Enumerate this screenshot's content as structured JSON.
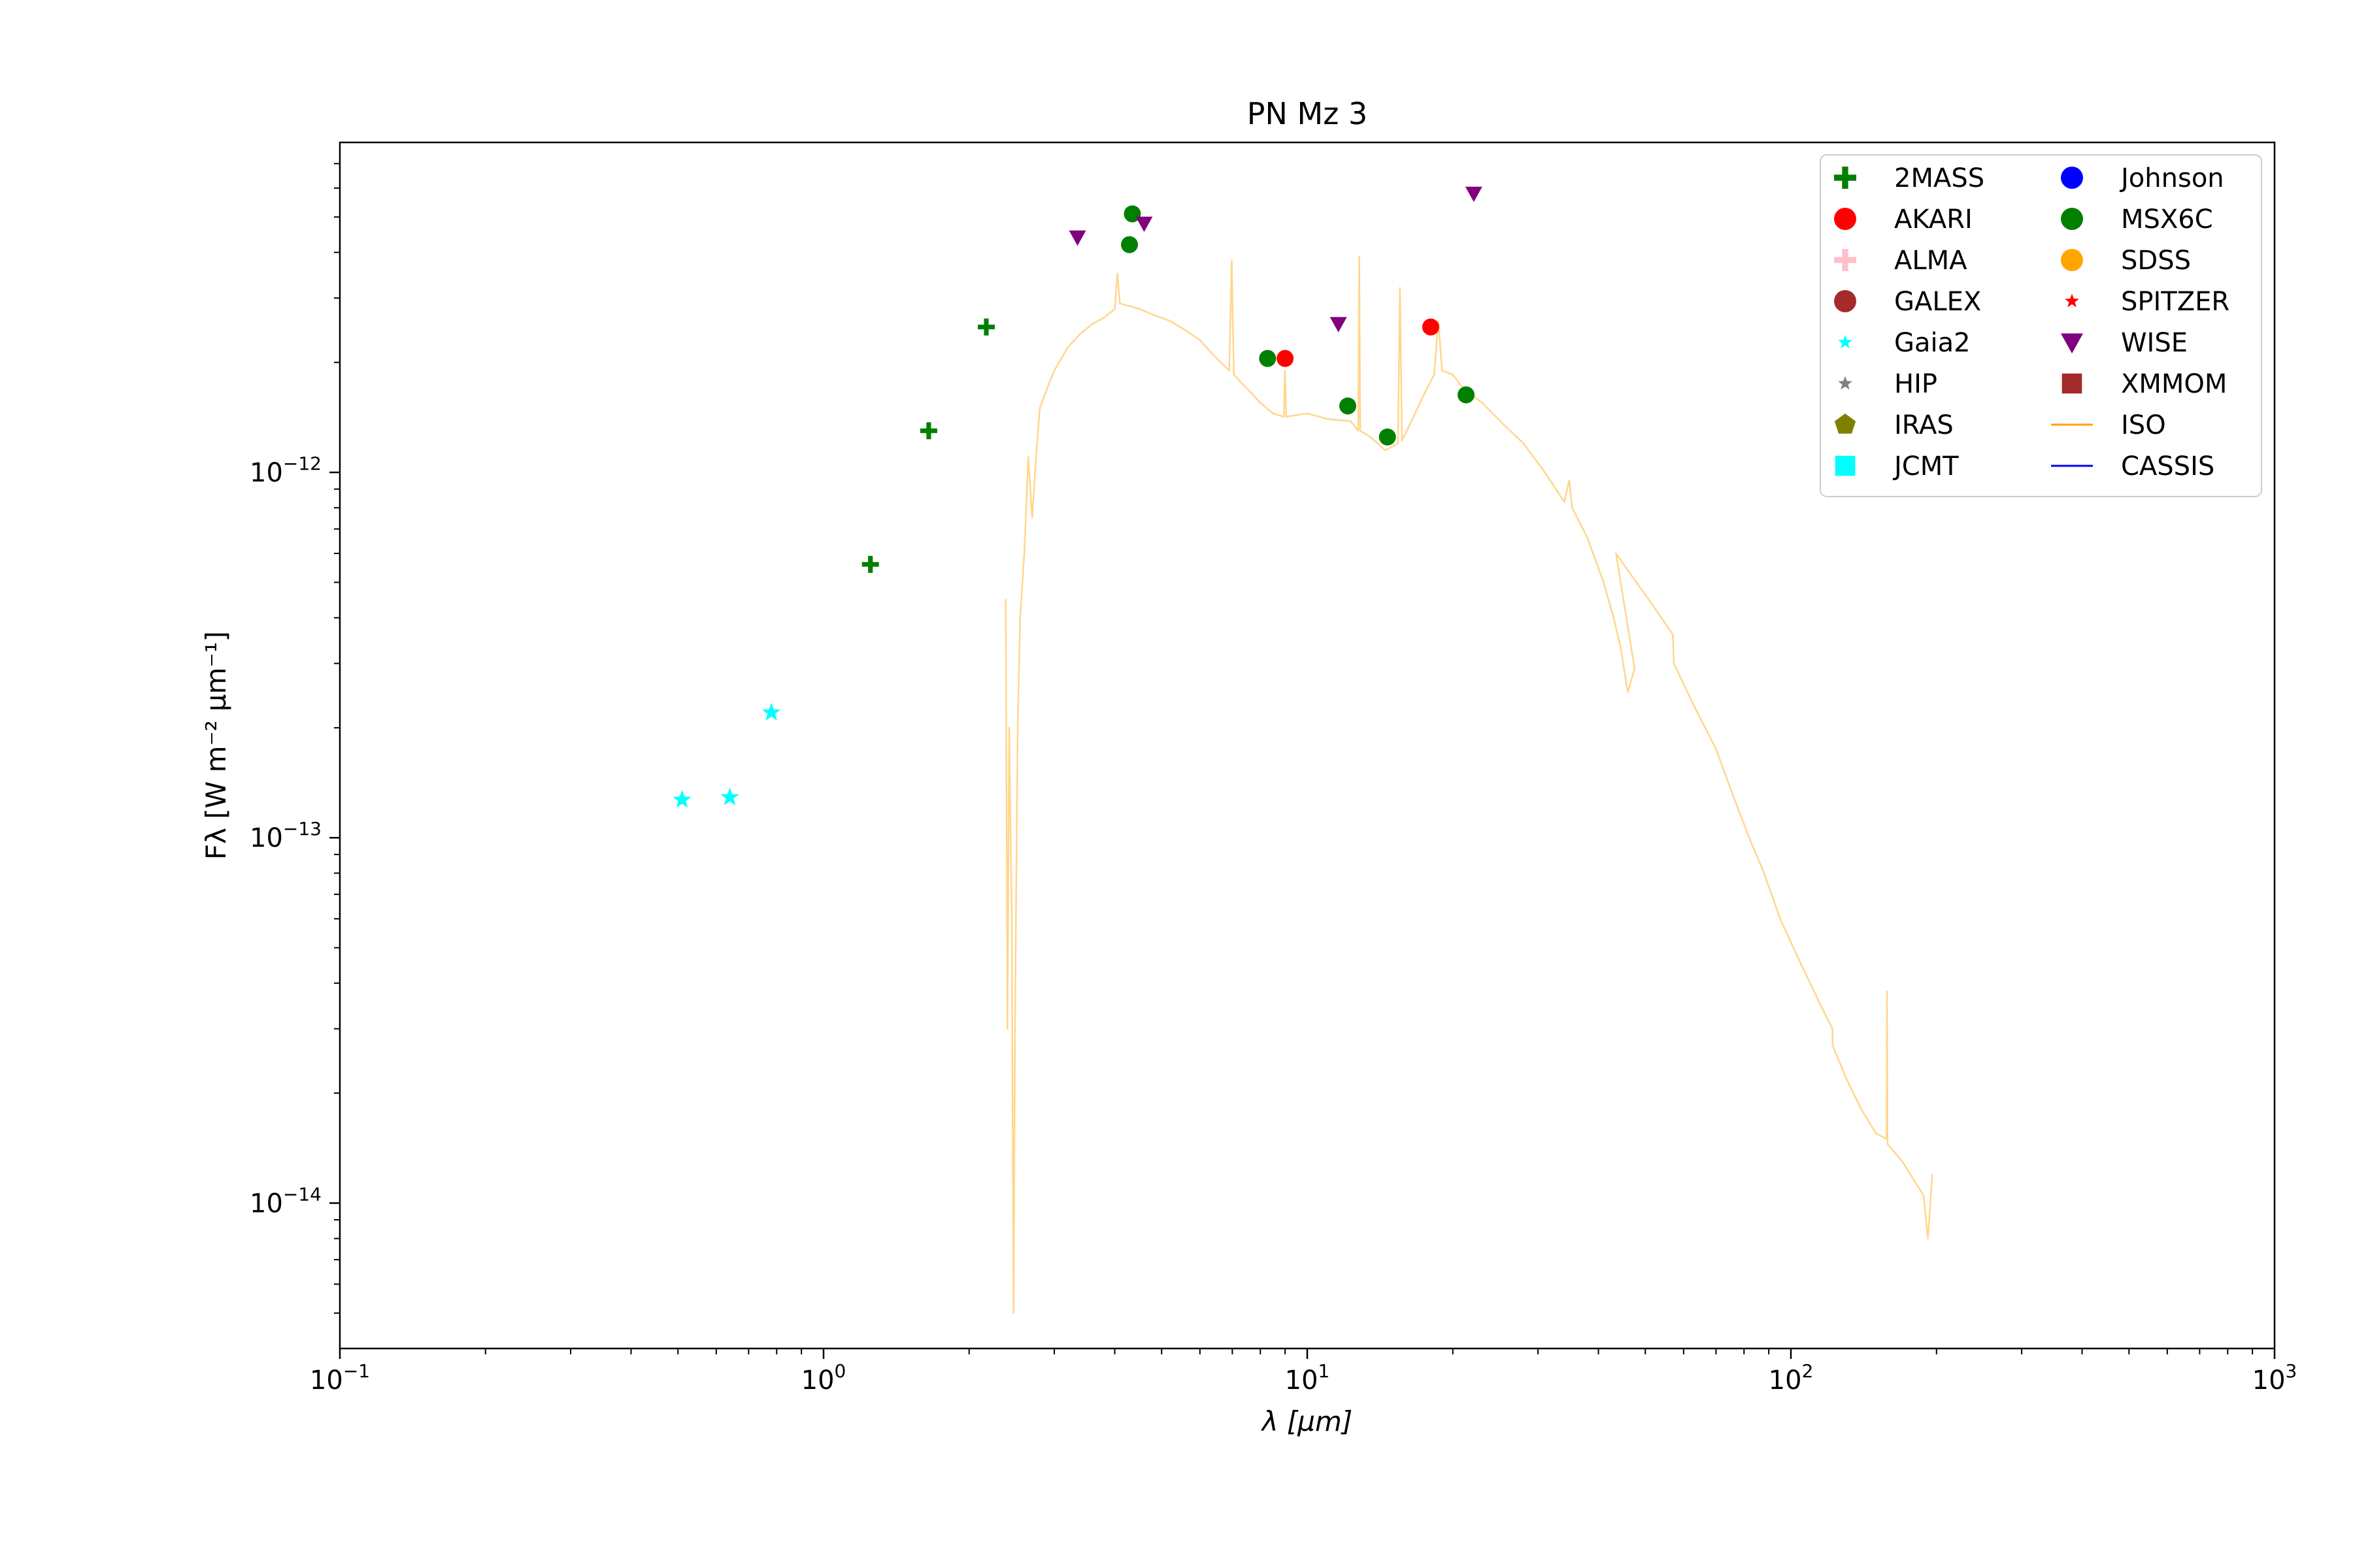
{
  "chart_data": {
    "type": "scatter",
    "title": "PN Mz 3",
    "xlabel": "λ [μm]",
    "ylabel": "Fλ [W m⁻² μm⁻¹]",
    "xscale": "log",
    "yscale": "log",
    "xlim": [
      0.1,
      1000
    ],
    "ylim": [
      4e-15,
      8e-12
    ],
    "grid": false,
    "legend_position": "top-right",
    "x_ticks": [
      {
        "value": 0.1,
        "base": "10",
        "exp": "−1"
      },
      {
        "value": 1,
        "base": "10",
        "exp": "0"
      },
      {
        "value": 10,
        "base": "10",
        "exp": "1"
      },
      {
        "value": 100,
        "base": "10",
        "exp": "2"
      },
      {
        "value": 1000,
        "base": "10",
        "exp": "3"
      }
    ],
    "y_ticks": [
      {
        "value": 1e-14,
        "base": "10",
        "exp": "−14"
      },
      {
        "value": 1e-13,
        "base": "10",
        "exp": "−13"
      },
      {
        "value": 1e-12,
        "base": "10",
        "exp": "−12"
      }
    ],
    "series": [
      {
        "name": "2MASS",
        "marker": "plus",
        "color": "#008000",
        "points": [
          [
            1.25,
            5.6e-13
          ],
          [
            1.65,
            1.3e-12
          ],
          [
            2.17,
            2.5e-12
          ]
        ]
      },
      {
        "name": "AKARI",
        "marker": "circle",
        "color": "#ff0000",
        "points": [
          [
            9.0,
            2.05e-12
          ],
          [
            18.0,
            2.5e-12
          ]
        ]
      },
      {
        "name": "ALMA",
        "marker": "plus",
        "color": "#ffc0cb",
        "points": []
      },
      {
        "name": "GALEX",
        "marker": "circle",
        "color": "#a52a2a",
        "points": []
      },
      {
        "name": "Gaia2",
        "marker": "star",
        "color": "#00ffff",
        "points": [
          [
            0.51,
            1.27e-13
          ],
          [
            0.64,
            1.29e-13
          ],
          [
            0.78,
            2.2e-13
          ]
        ]
      },
      {
        "name": "HIP",
        "marker": "star",
        "color": "#808080",
        "points": []
      },
      {
        "name": "IRAS",
        "marker": "pentagon",
        "color": "#808000",
        "points": []
      },
      {
        "name": "JCMT",
        "marker": "square",
        "color": "#00ffff",
        "points": []
      },
      {
        "name": "Johnson",
        "marker": "circle",
        "color": "#0000ff",
        "points": []
      },
      {
        "name": "MSX6C",
        "marker": "circle",
        "color": "#008000",
        "points": [
          [
            4.29,
            4.2e-12
          ],
          [
            4.35,
            5.1e-12
          ],
          [
            8.28,
            2.05e-12
          ],
          [
            12.13,
            1.52e-12
          ],
          [
            14.65,
            1.25e-12
          ],
          [
            21.3,
            1.63e-12
          ]
        ]
      },
      {
        "name": "SDSS",
        "marker": "circle",
        "color": "#ffa500",
        "points": []
      },
      {
        "name": "SPITZER",
        "marker": "star",
        "color": "#ff0000",
        "points": []
      },
      {
        "name": "WISE",
        "marker": "triangle-down",
        "color": "#800080",
        "points": [
          [
            3.35,
            4.4e-12
          ],
          [
            4.6,
            4.8e-12
          ],
          [
            11.6,
            2.55e-12
          ],
          [
            22.1,
            5.8e-12
          ]
        ]
      },
      {
        "name": "XMMOM",
        "marker": "square",
        "color": "#a52a2a",
        "points": []
      },
      {
        "name": "ISO",
        "marker": "line",
        "color": "#ffa500",
        "opacity": 0.45,
        "points": [
          [
            2.38,
            4.5e-13
          ],
          [
            2.4,
            3e-14
          ],
          [
            2.42,
            2e-13
          ],
          [
            2.45,
            6e-14
          ],
          [
            2.47,
            5e-15
          ],
          [
            2.49,
            3.5e-14
          ],
          [
            2.52,
            2e-13
          ],
          [
            2.55,
            4e-13
          ],
          [
            2.6,
            6e-13
          ],
          [
            2.65,
            1.1e-12
          ],
          [
            2.7,
            7.5e-13
          ],
          [
            2.75,
            1.1e-12
          ],
          [
            2.8,
            1.5e-12
          ],
          [
            2.9,
            1.7e-12
          ],
          [
            3.0,
            1.9e-12
          ],
          [
            3.2,
            2.2e-12
          ],
          [
            3.4,
            2.4e-12
          ],
          [
            3.6,
            2.55e-12
          ],
          [
            3.8,
            2.65e-12
          ],
          [
            4.0,
            2.8e-12
          ],
          [
            4.05,
            3.5e-12
          ],
          [
            4.1,
            2.9e-12
          ],
          [
            4.3,
            2.85e-12
          ],
          [
            4.5,
            2.8e-12
          ],
          [
            4.8,
            2.7e-12
          ],
          [
            5.2,
            2.6e-12
          ],
          [
            5.6,
            2.45e-12
          ],
          [
            6.0,
            2.3e-12
          ],
          [
            6.5,
            2.05e-12
          ],
          [
            6.9,
            1.9e-12
          ],
          [
            6.98,
            3.8e-12
          ],
          [
            7.05,
            1.85e-12
          ],
          [
            7.5,
            1.7e-12
          ],
          [
            8.0,
            1.55e-12
          ],
          [
            8.5,
            1.45e-12
          ],
          [
            8.95,
            1.42e-12
          ],
          [
            8.99,
            1.9e-12
          ],
          [
            9.05,
            1.42e-12
          ],
          [
            10.0,
            1.45e-12
          ],
          [
            11.0,
            1.4e-12
          ],
          [
            12.3,
            1.38e-12
          ],
          [
            12.75,
            1.3e-12
          ],
          [
            12.81,
            3.9e-12
          ],
          [
            12.87,
            1.3e-12
          ],
          [
            13.5,
            1.25e-12
          ],
          [
            14.5,
            1.15e-12
          ],
          [
            15.4,
            1.2e-12
          ],
          [
            15.55,
            3.2e-12
          ],
          [
            15.7,
            1.22e-12
          ],
          [
            16.5,
            1.4e-12
          ],
          [
            17.5,
            1.65e-12
          ],
          [
            18.3,
            1.85e-12
          ],
          [
            18.67,
            2.6e-12
          ],
          [
            19.0,
            1.9e-12
          ],
          [
            20.0,
            1.85e-12
          ],
          [
            21.0,
            1.7e-12
          ],
          [
            23.0,
            1.55e-12
          ],
          [
            25.5,
            1.35e-12
          ],
          [
            28.0,
            1.2e-12
          ],
          [
            31.0,
            1e-12
          ],
          [
            34.0,
            8.3e-13
          ],
          [
            34.8,
            9.5e-13
          ],
          [
            35.3,
            8e-13
          ],
          [
            38.0,
            6.6e-13
          ],
          [
            41.0,
            5e-13
          ],
          [
            43.0,
            4e-13
          ],
          [
            44.5,
            3.3e-13
          ],
          [
            46.0,
            2.5e-13
          ],
          [
            47.5,
            2.9e-13
          ],
          [
            43.5,
            6e-13
          ],
          [
            46.0,
            5.4e-13
          ],
          [
            52.0,
            4.3e-13
          ],
          [
            57.0,
            3.6e-13
          ],
          [
            57.3,
            3e-13
          ],
          [
            58.0,
            2.9e-13
          ],
          [
            63.0,
            2.3e-13
          ],
          [
            70.0,
            1.75e-13
          ],
          [
            76.0,
            1.3e-13
          ],
          [
            82.0,
            1e-13
          ],
          [
            88.0,
            8e-14
          ],
          [
            95.0,
            6e-14
          ],
          [
            105.0,
            4.5e-14
          ],
          [
            115.0,
            3.5e-14
          ],
          [
            121.9,
            3e-14
          ],
          [
            122.0,
            2.7e-14
          ],
          [
            130.0,
            2.2e-14
          ],
          [
            140.0,
            1.8e-14
          ],
          [
            150.0,
            1.55e-14
          ],
          [
            157.7,
            1.5e-14
          ],
          [
            158.0,
            3.8e-14
          ],
          [
            158.4,
            1.45e-14
          ],
          [
            170.0,
            1.3e-14
          ],
          [
            180.0,
            1.15e-14
          ],
          [
            188.0,
            1.05e-14
          ],
          [
            192.0,
            8e-15
          ],
          [
            196.0,
            1.2e-14
          ]
        ]
      },
      {
        "name": "CASSIS",
        "marker": "line",
        "color": "#0000ff",
        "points": []
      }
    ]
  }
}
